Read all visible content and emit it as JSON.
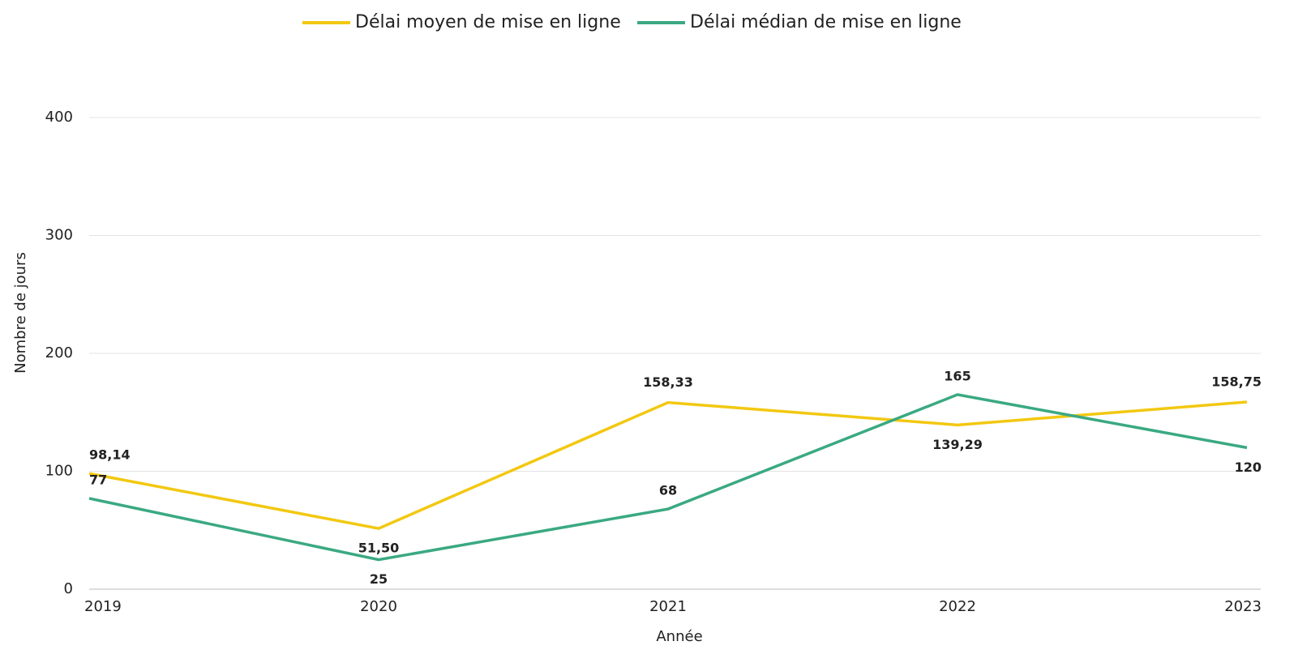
{
  "chart_data": {
    "type": "line",
    "categories": [
      "2019",
      "2020",
      "2021",
      "2022",
      "2023"
    ],
    "series": [
      {
        "name": "Délai moyen de mise en ligne",
        "color": "#f2c811",
        "values": [
          98.14,
          51.5,
          158.33,
          139.29,
          158.75
        ],
        "value_labels": [
          "98,14",
          "51,50",
          "158,33",
          "139,29",
          "158,75"
        ]
      },
      {
        "name": "Délai médian de mise en ligne",
        "color": "#3aa981",
        "values": [
          77,
          25,
          68,
          165,
          120
        ]
      }
    ],
    "x_label": "Année",
    "y_label": "Nombre de jours",
    "ylim": [
      0,
      400
    ],
    "yticks": [
      0,
      100,
      200,
      300,
      400
    ],
    "grid": true,
    "legend": "top"
  }
}
